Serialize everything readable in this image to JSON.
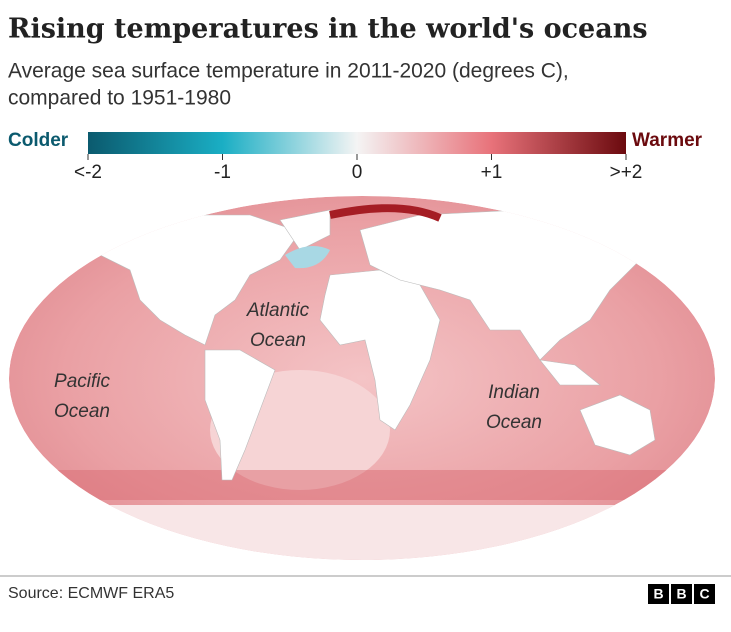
{
  "header": {
    "title": "Rising temperatures in the world's oceans",
    "subtitle": [
      "Average sea surface temperature in 2011-2020 (degrees C),",
      "compared to 1951-1980"
    ]
  },
  "legend": {
    "low_label": "Colder",
    "high_label": "Warmer",
    "ticks": [
      "<-2",
      "-1",
      "0",
      "+1",
      ">+2"
    ]
  },
  "map": {
    "labels": [
      [
        "Atlantic",
        "Ocean"
      ],
      [
        "Pacific",
        "Ocean"
      ],
      [
        "Indian",
        "Ocean"
      ]
    ]
  },
  "footer": {
    "source": "Source: ECMWF ERA5",
    "logo": [
      "B",
      "B",
      "C"
    ]
  }
}
